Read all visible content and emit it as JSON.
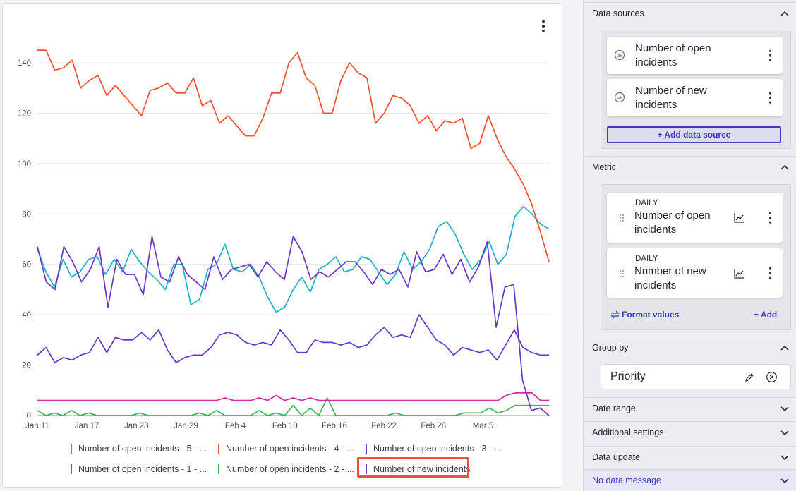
{
  "chart_data": {
    "type": "line",
    "x_tick_labels": [
      "Jan 11",
      "Jan 17",
      "Jan 23",
      "Jan 29",
      "Feb 4",
      "Feb 10",
      "Feb 16",
      "Feb 22",
      "Feb 28",
      "Mar 5"
    ],
    "y_tick_labels": [
      "0",
      "20",
      "40",
      "60",
      "80",
      "100",
      "120",
      "140"
    ],
    "ylim": [
      0,
      150
    ],
    "x_days": 62,
    "grid": true,
    "legend_position": "bottom",
    "series": [
      {
        "name": "Number of open incidents - 5 - ...",
        "color": "#1fb0c8",
        "values": [
          66,
          57,
          51,
          62,
          55,
          57,
          62,
          63,
          56,
          62,
          57,
          66,
          61,
          57,
          54,
          50,
          60,
          60,
          44,
          46,
          58,
          60,
          68,
          58,
          57,
          60,
          55,
          47,
          41,
          43,
          50,
          55,
          49,
          58,
          60,
          63,
          57,
          58,
          63,
          62,
          57,
          52,
          56,
          65,
          58,
          61,
          66,
          75,
          77,
          72,
          64,
          58,
          62,
          69,
          60,
          64,
          79,
          83,
          80,
          76,
          74
        ]
      },
      {
        "name": "Number of open incidents - 4 - ...",
        "color": "#f0502c",
        "values": [
          145,
          145,
          137,
          138,
          141,
          130,
          133,
          135,
          127,
          131,
          127,
          123,
          119,
          129,
          130,
          132,
          128,
          128,
          134,
          123,
          125,
          116,
          119,
          115,
          111,
          111,
          118,
          128,
          128,
          140,
          144,
          134,
          131,
          120,
          120,
          133,
          140,
          136,
          134,
          116,
          120,
          127,
          126,
          123,
          116,
          119,
          113,
          117,
          116,
          118,
          106,
          108,
          119,
          110,
          103,
          98,
          92,
          84,
          73,
          61
        ]
      },
      {
        "name": "Number of open incidents - 3 - ...",
        "color": "#6a35c8",
        "values": [
          24,
          27,
          21,
          23,
          22,
          24,
          25,
          31,
          25,
          31,
          30,
          30,
          33,
          30,
          34,
          26,
          21,
          23,
          24,
          24,
          27,
          32,
          33,
          32,
          29,
          28,
          29,
          28,
          34,
          30,
          25,
          25,
          30,
          29,
          29,
          28,
          29,
          27,
          28,
          32,
          35,
          31,
          32,
          31,
          40,
          35,
          30,
          28,
          24,
          27,
          26,
          25,
          26,
          22,
          28,
          34,
          27,
          25,
          24,
          24
        ]
      },
      {
        "name": "Number of open incidents - 1 - ...",
        "color": "#d42a9a",
        "values": [
          6,
          6,
          6,
          6,
          6,
          6,
          6,
          6,
          6,
          6,
          6,
          6,
          6,
          6,
          6,
          6,
          6,
          6,
          6,
          6,
          6,
          6,
          7,
          6,
          6,
          6,
          7,
          6,
          8,
          6,
          7,
          6,
          7,
          6,
          6,
          6,
          6,
          6,
          6,
          6,
          6,
          6,
          6,
          6,
          6,
          6,
          6,
          6,
          6,
          6,
          6,
          6,
          6,
          6,
          6,
          8,
          9,
          9,
          9,
          6,
          6
        ]
      },
      {
        "name": "Number of open incidents - 2 - ...",
        "color": "#3fb55a",
        "values": [
          2,
          0,
          1,
          0,
          2,
          0,
          1,
          0,
          0,
          0,
          0,
          0,
          1,
          0,
          0,
          0,
          0,
          0,
          0,
          1,
          0,
          2,
          0,
          0,
          0,
          0,
          2,
          0,
          1,
          0,
          4,
          0,
          3,
          0,
          7,
          0,
          0,
          0,
          0,
          0,
          0,
          0,
          1,
          0,
          0,
          0,
          0,
          0,
          0,
          0,
          1,
          1,
          1,
          3,
          1,
          2,
          4,
          4,
          4,
          4,
          4
        ]
      },
      {
        "name": "Number of new incidents",
        "color": "#6a35c8",
        "values": [
          67,
          53,
          50,
          67,
          61,
          53,
          58,
          67,
          43,
          62,
          56,
          56,
          48,
          71,
          55,
          53,
          63,
          56,
          53,
          50,
          63,
          54,
          58,
          59,
          60,
          55,
          61,
          57,
          54,
          71,
          65,
          54,
          57,
          55,
          58,
          61,
          61,
          57,
          52,
          58,
          56,
          58,
          51,
          65,
          57,
          58,
          64,
          56,
          62,
          53,
          59,
          69,
          35,
          51,
          52,
          14,
          2,
          3,
          0
        ]
      }
    ]
  },
  "legend": {
    "highlighted": "Number of new incidents"
  },
  "panel": {
    "data_sources": {
      "header": "Data sources",
      "items": [
        {
          "line1": "Number of open",
          "line2": "incidents"
        },
        {
          "line1": "Number of new",
          "line2": "incidents"
        }
      ],
      "add_label": "+ Add data source"
    },
    "metric": {
      "header": "Metric",
      "items": [
        {
          "period": "DAILY",
          "line1": "Number of open",
          "line2": "incidents"
        },
        {
          "period": "DAILY",
          "line1": "Number of new",
          "line2": "incidents"
        }
      ],
      "format_label": "Format values",
      "add_label": "+ Add"
    },
    "group_by": {
      "header": "Group by",
      "value": "Priority"
    },
    "collapsed_sections": [
      "Date range",
      "Additional settings",
      "Data update",
      "No data message"
    ]
  },
  "colors": {
    "accent": "#3b3dbd",
    "highlight_border": "#e8513c"
  }
}
